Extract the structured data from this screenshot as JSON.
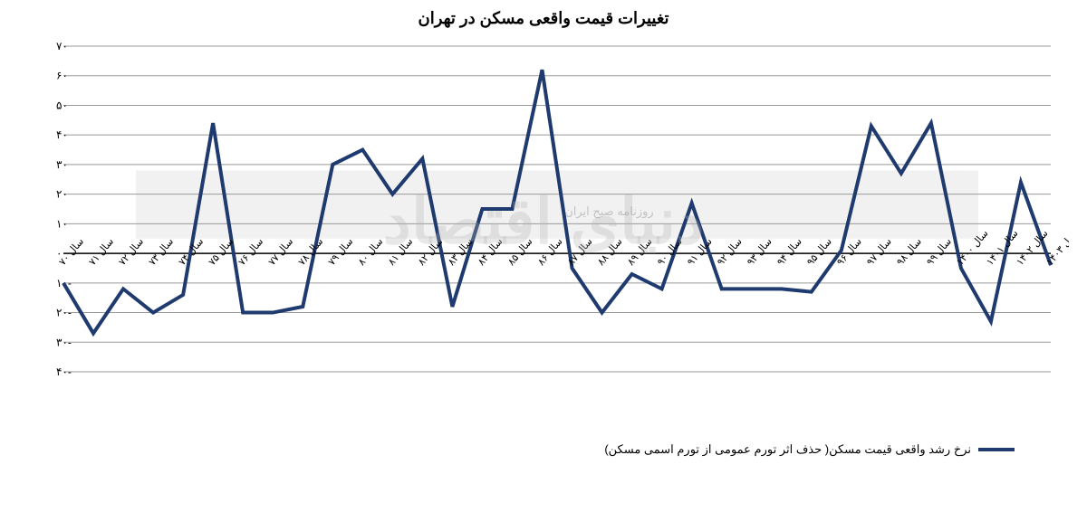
{
  "chart": {
    "type": "line",
    "title": "تغییرات قیمت واقعی مسکن در تهران",
    "title_fontsize": 18,
    "background_color": "#ffffff",
    "grid_color": "#999999",
    "zero_line_color": "#000000",
    "line_color": "#1f3a6e",
    "line_width": 4,
    "ylim": [
      -40,
      70
    ],
    "ytick_step": 10,
    "yticks": [
      -40,
      -30,
      -20,
      -10,
      0,
      10,
      20,
      30,
      40,
      50,
      60,
      70
    ],
    "ytick_labels": [
      "-۴۰",
      "-۳۰",
      "-۲۰",
      "-۱۰",
      "۰",
      "۱۰",
      "۲۰",
      "۳۰",
      "۴۰",
      "۵۰",
      "۶۰",
      "۷۰"
    ],
    "x_labels": [
      "سال ۷۰",
      "سال ۷۱",
      "سال ۷۲",
      "سال ۷۳",
      "سال ۷۴",
      "سال ۷۵",
      "سال ۷۶",
      "سال ۷۷",
      "سال ۷۸",
      "سال ۷۹",
      "سال ۸۰",
      "سال ۸۱",
      "سال ۸۲",
      "سال ۸۳",
      "سال ۸۴",
      "سال ۸۵",
      "سال ۸۶",
      "سال ۸۷",
      "سال ۸۸",
      "سال ۸۹",
      "سال ۹۰",
      "سال ۹۱",
      "سال ۹۲",
      "سال ۹۳",
      "سال ۹۴",
      "سال ۹۵",
      "سال ۹۶",
      "سال ۹۷",
      "سال ۹۸",
      "سال ۹۹",
      "سال ۱۴۰۰",
      "سال ۱۴۰۱",
      "سال ۱۴۰۲",
      "۴ ماهه اول ۱۴۰۳"
    ],
    "values": [
      -10,
      -27,
      -12,
      -20,
      -14,
      44,
      -20,
      -20,
      -18,
      30,
      35,
      20,
      32,
      -18,
      15,
      15,
      62,
      -5,
      -20,
      -7,
      -12,
      17,
      -12,
      -12,
      -12,
      -13,
      1,
      43,
      27,
      44,
      -5,
      -23,
      24,
      -4
    ],
    "watermark_text": "دنیای اقتصاد",
    "watermark_sub": "روزنامه صبح ایران",
    "watermark_band_yrange": [
      5,
      28
    ],
    "legend_label": "نرخ رشد واقعی قیمت مسکن( حذف اثر تورم عمومی از تورم اسمی مسکن)",
    "axis_fontsize": 12,
    "xlabel_fontsize": 11
  }
}
